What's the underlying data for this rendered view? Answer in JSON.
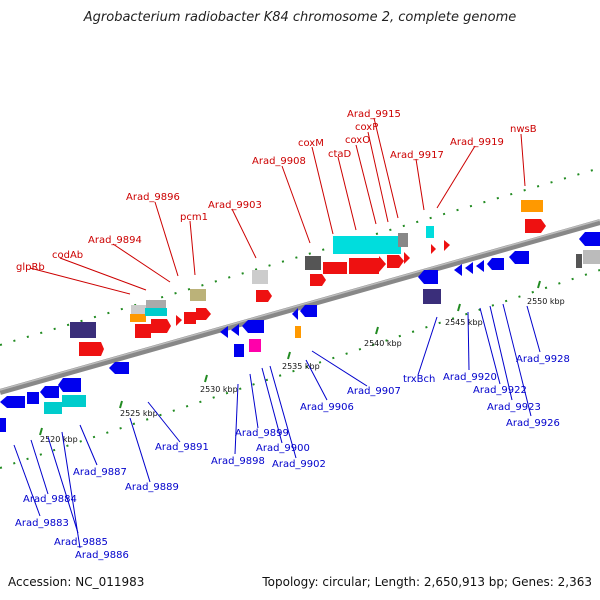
{
  "title": "Agrobacterium radiobacter K84 chromosome 2, complete genome",
  "footer": {
    "accession": "Accession: NC_011983",
    "summary": "Topology: circular; Length: 2,650,913 bp; Genes: 2,363"
  },
  "colors": {
    "forward": "#ff0000",
    "reverse": "#0000ee",
    "backbone": "#888888",
    "tick": "#228b22",
    "top_label": "#cc0000",
    "bottom_label": "#0000cc"
  },
  "kbp_labels": [
    "2520 kbp",
    "2525 kbp",
    "2530 kbp",
    "2535 kbp",
    "2540 kbp",
    "2545 kbp",
    "2550 kbp"
  ],
  "top_genes": [
    "glpRb",
    "codAb",
    "Arad_9894",
    "Arad_9896",
    "pcm1",
    "Arad_9903",
    "Arad_9908",
    "coxM",
    "ctaD",
    "coxO",
    "coxP",
    "Arad_9915",
    "Arad_9917",
    "Arad_9919",
    "nwsB"
  ],
  "bottom_genes": [
    "Arad_9883",
    "Arad_9884",
    "Arad_9885",
    "Arad_9886",
    "Arad_9887",
    "Arad_9889",
    "Arad_9891",
    "Arad_9898",
    "Arad_9899",
    "Arad_9900",
    "Arad_9902",
    "Arad_9906",
    "Arad_9907",
    "trxBch",
    "Arad_9920",
    "Arad_9922",
    "Arad_9923",
    "Arad_9926",
    "Arad_9928"
  ]
}
